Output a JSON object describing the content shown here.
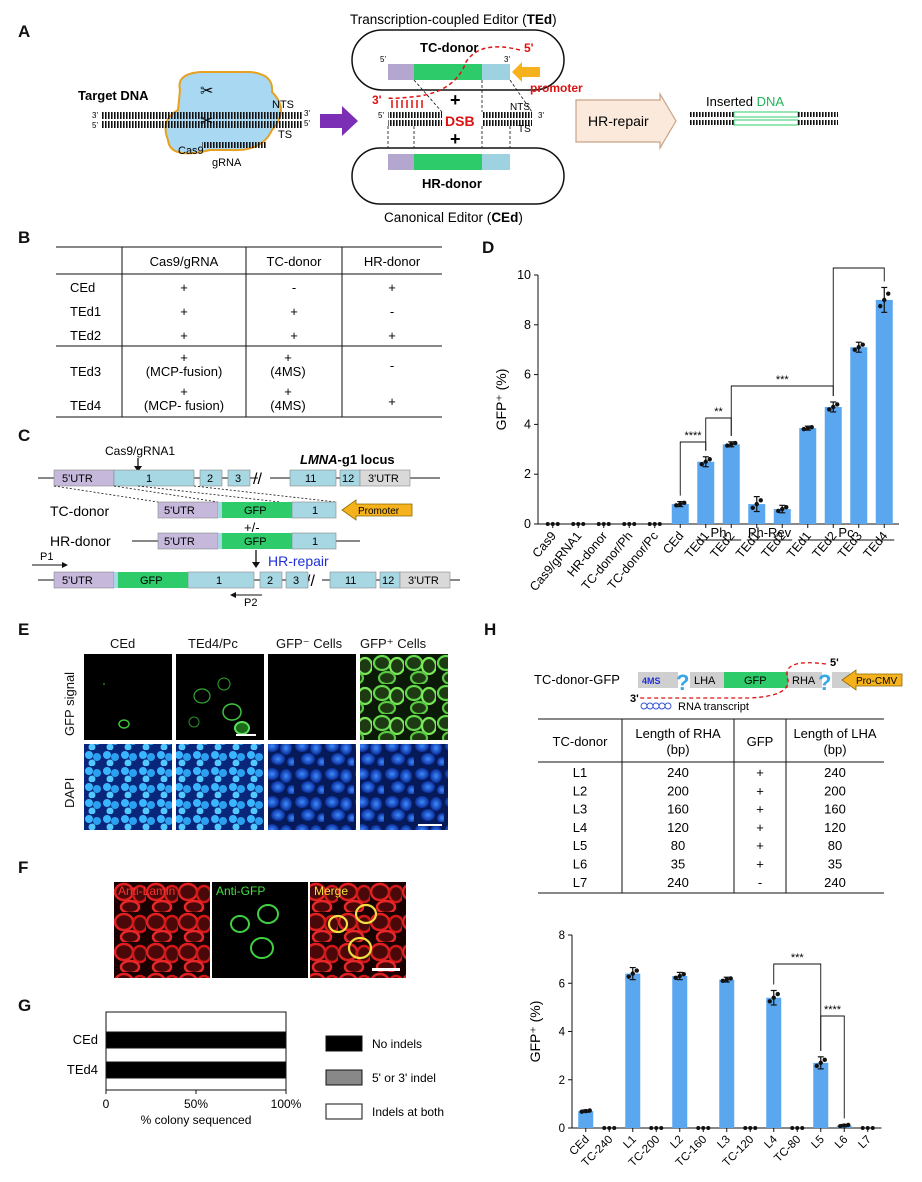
{
  "panels": {
    "A": "A",
    "B": "B",
    "C": "C",
    "D": "D",
    "E": "E",
    "F": "F",
    "G": "G",
    "H": "H"
  },
  "panel_a": {
    "top_title_pre": "Transcription-coupled Editor (",
    "top_title_bold": "TEd",
    "top_title_post": ")",
    "bottom_title_pre": "Canonical Editor (",
    "bottom_title_bold": "CEd",
    "bottom_title_post": ")",
    "target_dna": "Target DNA",
    "nts": "NTS",
    "ts": "TS",
    "cas9": "Cas9",
    "grna": "gRNA",
    "tc_donor": "TC-donor",
    "hr_donor": "HR-donor",
    "promoter": "promoter",
    "dsb": "DSB",
    "hr_repair": "HR-repair",
    "inserted_pre": "Inserted ",
    "inserted_dna": "DNA",
    "five": "5'",
    "three": "3'",
    "plus": "+"
  },
  "panel_b": {
    "headers": [
      "",
      "Cas9/gRNA",
      "TC-donor",
      "HR-donor"
    ],
    "rows": [
      {
        "name": "CEd",
        "c1": "+",
        "c2": "-",
        "c3": "+"
      },
      {
        "name": "TEd1",
        "c1": "+",
        "c2": "+",
        "c3": "-"
      },
      {
        "name": "TEd2",
        "c1": "+",
        "c2": "+",
        "c3": "+"
      },
      {
        "name": "TEd3",
        "c1": "+",
        "c1b": "(MCP-fusion)",
        "c2": "+",
        "c2b": "(4MS)",
        "c3": "-"
      },
      {
        "name": "TEd4",
        "c1": "+",
        "c1b": "(MCP- fusion)",
        "c2": "+",
        "c2b": "(4MS)",
        "c3": "+"
      }
    ]
  },
  "panel_c": {
    "cut": "Cas9/gRNA1",
    "locus_bold": "LMNA",
    "locus_rest": "-g1 locus",
    "utr5": "5'UTR",
    "utr3": "3'UTR",
    "exons": [
      "1",
      "2",
      "3",
      "11",
      "12"
    ],
    "gfp": "GFP",
    "tc_donor": "TC-donor",
    "hr_donor": "HR-donor",
    "promoter": "Promoter",
    "plusminus": "+/-",
    "hr_repair": "HR-repair",
    "p1": "P1",
    "p2": "P2"
  },
  "panel_e": {
    "cols": [
      "CEd",
      "TEd4/Pc",
      "GFP⁻ Cells",
      "GFP⁺ Cells"
    ],
    "rows": [
      "GFP signal",
      "DAPI"
    ]
  },
  "panel_f": {
    "cols": [
      "Anti-Lamin",
      "Anti-GFP",
      "Merge"
    ]
  },
  "panel_g": {
    "categories": [
      "CEd",
      "TEd4"
    ],
    "ticks": [
      "0",
      "50%",
      "100%"
    ],
    "xlabel": "% colony sequenced",
    "legend": [
      "No indels",
      "5' or 3' indel",
      "Indels at both"
    ]
  },
  "panel_h": {
    "construct": "TC-donor-GFP",
    "ms": "4MS",
    "lha": "LHA",
    "gfp": "GFP",
    "rha": "RHA",
    "pro": "Pro-CMV",
    "rna": "RNA transcript",
    "five": "5'",
    "three": "3'",
    "qmark": "?",
    "table_headers": [
      "TC-donor",
      "Length of RHA",
      "(bp)",
      "GFP",
      "Length of LHA",
      "(bp)"
    ],
    "rows": [
      {
        "n": "L1",
        "rha": "240",
        "gfp": "+",
        "lha": "240"
      },
      {
        "n": "L2",
        "rha": "200",
        "gfp": "+",
        "lha": "200"
      },
      {
        "n": "L3",
        "rha": "160",
        "gfp": "+",
        "lha": "160"
      },
      {
        "n": "L4",
        "rha": "120",
        "gfp": "+",
        "lha": "120"
      },
      {
        "n": "L5",
        "rha": "80",
        "gfp": "+",
        "lha": "80"
      },
      {
        "n": "L6",
        "rha": "35",
        "gfp": "+",
        "lha": "35"
      },
      {
        "n": "L7",
        "rha": "240",
        "gfp": "-",
        "lha": "240"
      }
    ]
  },
  "chart_data": [
    {
      "type": "bar",
      "panel": "D",
      "categories": [
        "Cas9",
        "Cas9/gRNA1",
        "HR-donor",
        "TC-donor/Ph",
        "TC-donor/Pc",
        "CEd",
        "TEd1",
        "TEd2",
        "TEd1",
        "TEd2",
        "TEd1",
        "TEd2",
        "TEd3",
        "TEd4"
      ],
      "values": [
        0,
        0,
        0,
        0,
        0,
        0.8,
        2.5,
        3.2,
        0.8,
        0.6,
        3.85,
        4.7,
        7.1,
        9.0
      ],
      "errors": [
        0,
        0,
        0,
        0,
        0,
        0.1,
        0.2,
        0.1,
        0.3,
        0.15,
        0.08,
        0.2,
        0.2,
        0.5
      ],
      "groups": [
        {
          "label": "Ph",
          "from": 6,
          "to": 7
        },
        {
          "label": "Ph-Rev",
          "from": 8,
          "to": 9
        },
        {
          "label": "Pc",
          "from": 10,
          "to": 13
        }
      ],
      "ylabel": "GFP⁺ (%)",
      "ylim": [
        0,
        10
      ],
      "yticks": [
        "0",
        "2",
        "4",
        "6",
        "8",
        "10"
      ],
      "significance": [
        {
          "from": 5,
          "to": 6,
          "label": "****"
        },
        {
          "from": 6,
          "to": 7,
          "label": "**"
        },
        {
          "from": 7,
          "to": 11,
          "label": "***"
        },
        {
          "from": 11,
          "to": 13,
          "label": "***"
        }
      ],
      "color": "#5aa7f0"
    },
    {
      "type": "bar",
      "panel": "H",
      "categories": [
        "CEd",
        "TC-240",
        "L1",
        "TC-200",
        "L2",
        "TC-160",
        "L3",
        "TC-120",
        "L4",
        "TC-80",
        "L5",
        "L6",
        "L7"
      ],
      "values": [
        0.7,
        0,
        6.4,
        0,
        6.3,
        0,
        6.15,
        0,
        5.4,
        0,
        2.7,
        0.1,
        0
      ],
      "errors": [
        0.05,
        0,
        0.25,
        0,
        0.15,
        0,
        0.1,
        0,
        0.3,
        0,
        0.25,
        0.05,
        0
      ],
      "ylabel": "GFP⁺ (%)",
      "ylim": [
        0,
        8
      ],
      "yticks": [
        "0",
        "2",
        "4",
        "6",
        "8"
      ],
      "significance": [
        {
          "from": 8,
          "to": 10,
          "label": "***"
        },
        {
          "from": 10,
          "to": 11,
          "label": "****"
        }
      ],
      "color": "#5aa7f0"
    },
    {
      "type": "bar",
      "panel": "G",
      "orientation": "horizontal",
      "categories": [
        "CEd",
        "TEd4"
      ],
      "series": [
        {
          "name": "No indels",
          "values": [
            100,
            100
          ]
        },
        {
          "name": "5' or 3' indel",
          "values": [
            0,
            0
          ]
        },
        {
          "name": "Indels at both",
          "values": [
            0,
            0
          ]
        }
      ],
      "xlim": [
        0,
        100
      ]
    }
  ]
}
